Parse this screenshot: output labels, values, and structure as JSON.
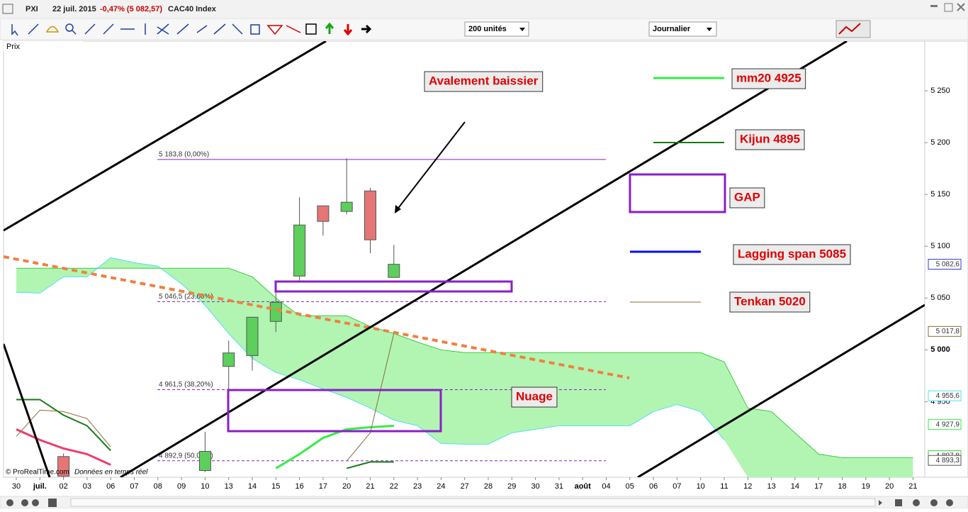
{
  "header": {
    "symbol": "PXI",
    "date": "22 juil. 2015",
    "change": "-0,47% (5 082,57)",
    "name": "CAC40 Index",
    "units": "200 unités",
    "period": "Journalier",
    "panel": "Prix",
    "credit": "© ProRealTime.com",
    "feed": "Données en temps réel"
  },
  "chart_data": {
    "type": "candlestick",
    "categories": [
      "30",
      "juil.",
      "02",
      "03",
      "06",
      "07",
      "08",
      "09",
      "10",
      "13",
      "14",
      "15",
      "16",
      "17",
      "20",
      "21",
      "22",
      "23",
      "24",
      "27",
      "28",
      "29",
      "30",
      "31",
      "août",
      "04",
      "05",
      "06",
      "07",
      "10",
      "11",
      "12",
      "13",
      "14",
      "17",
      "18",
      "19",
      "20",
      "21"
    ],
    "open": [
      null,
      null,
      4897,
      null,
      null,
      null,
      null,
      null,
      4883.5,
      4984,
      4994.5,
      5027.4,
      5071.2,
      5139,
      5133.6,
      5153.4,
      5069.9,
      null,
      null,
      null,
      null,
      null,
      null,
      null,
      null,
      null,
      null,
      null,
      null,
      null,
      null,
      null,
      null,
      null,
      null,
      null,
      null,
      null,
      null
    ],
    "high": [
      null,
      null,
      4900,
      null,
      null,
      null,
      null,
      null,
      4921,
      5009,
      5031.5,
      5055.5,
      5147.3,
      5139,
      5185,
      5156.2,
      5101.4,
      null,
      null,
      null,
      null,
      null,
      null,
      null,
      null,
      null,
      null,
      null,
      null,
      null,
      null,
      null,
      null,
      null,
      null,
      null,
      null,
      null,
      null
    ],
    "low": [
      null,
      null,
      4877,
      null,
      null,
      null,
      null,
      null,
      4882,
      4961,
      4980,
      5017.1,
      5067.1,
      5110.3,
      5130.8,
      5093.2,
      5069.9,
      null,
      null,
      null,
      null,
      null,
      null,
      null,
      null,
      null,
      null,
      null,
      null,
      null,
      null,
      null,
      null,
      null,
      null,
      null,
      null,
      null,
      null
    ],
    "close": [
      null,
      null,
      4878,
      null,
      null,
      null,
      null,
      null,
      4902,
      4997,
      5031.5,
      5045.9,
      5120.5,
      5124,
      5142.5,
      5106.2,
      5082.6,
      null,
      null,
      null,
      null,
      null,
      null,
      null,
      null,
      null,
      null,
      null,
      null,
      null,
      null,
      null,
      null,
      null,
      null,
      null,
      null,
      null,
      null
    ],
    "up_color": "#5ccf5c",
    "down_color": "#e57676",
    "ylim": [
      4877,
      5298
    ],
    "yticks": [
      {
        "value": 4950,
        "label": "4 950"
      },
      {
        "value": 5000,
        "label": "5 000"
      },
      {
        "value": 5050,
        "label": "5 050"
      },
      {
        "value": 5100,
        "label": "5 100"
      },
      {
        "value": 5150,
        "label": "5 150"
      },
      {
        "value": 5200,
        "label": "5 200"
      },
      {
        "value": 5250,
        "label": "5 250"
      }
    ],
    "series": [
      {
        "name": "mm20 4925",
        "color": "#33ee44",
        "values": [
          null,
          null,
          null,
          null,
          null,
          null,
          null,
          null,
          null,
          null,
          null,
          4885.6,
          4899.3,
          4915,
          4923.3,
          4925.3,
          4926.7,
          null,
          null,
          null,
          null,
          null,
          null,
          null,
          null,
          null,
          null,
          null,
          null,
          null,
          null,
          null,
          null,
          null,
          null,
          null,
          null,
          null,
          null
        ]
      },
      {
        "name": "Kijun 4895",
        "color": "#157a15",
        "values": [
          4952,
          4952,
          4937,
          4926.7,
          4902.7,
          null,
          null,
          null,
          null,
          null,
          null,
          null,
          null,
          null,
          4885.6,
          4891.8,
          4891.8,
          null,
          null,
          null,
          null,
          null,
          null,
          null,
          null,
          null,
          null,
          null,
          null,
          null,
          null,
          null,
          null,
          null,
          null,
          null,
          null,
          null,
          null
        ]
      },
      {
        "name": "Lagging span 5085",
        "color": "#0a0aff",
        "values": [
          null,
          null,
          null,
          null,
          null,
          null,
          null,
          null,
          null,
          null,
          null,
          null,
          null,
          null,
          null,
          null,
          null,
          null,
          null,
          null,
          null,
          null,
          null,
          null,
          null,
          null,
          null,
          null,
          null,
          null,
          null,
          null,
          null,
          null,
          null,
          null,
          null,
          null,
          null
        ]
      },
      {
        "name": "Tenkan 5020",
        "color": "#8a6a36",
        "values": [
          4916.4,
          4941.8,
          4940.4,
          4933.6,
          4906.2,
          null,
          null,
          null,
          null,
          null,
          null,
          null,
          null,
          null,
          4892.5,
          4919.9,
          5015.8,
          null,
          null,
          null,
          null,
          null,
          null,
          null,
          null,
          null,
          null,
          null,
          null,
          null,
          null,
          null,
          null,
          null,
          null,
          null,
          null,
          null,
          null
        ]
      },
      {
        "color": "#ee3d6e",
        "values": [
          4923.3,
          4913,
          4904.8,
          4899.3,
          4889,
          null,
          null,
          null,
          null,
          null,
          null,
          null,
          null,
          null,
          null,
          null,
          null,
          null,
          null,
          null,
          null,
          null,
          null,
          null,
          null,
          null,
          null,
          null,
          null,
          null,
          null,
          null,
          null,
          null,
          null,
          null,
          null,
          null,
          null
        ]
      }
    ],
    "cloud": {
      "name": "Nuage",
      "color": "#b2f5b2",
      "span_a_color": "#4ee0f0",
      "span_b_color": "#3ccc3c",
      "span_a": [
        5055.5,
        5054.8,
        5070.5,
        5070.5,
        5089,
        5084.2,
        5080.8,
        5063.7,
        5043.2,
        5015.8,
        4991.8,
        4978.1,
        4971.2,
        4962.3,
        4954.1,
        4943.8,
        4932.2,
        4926.7,
        4909.6,
        4908.9,
        4908.9,
        4919.9,
        4923.3,
        4926.7,
        4926.7,
        4926.7,
        4926.7,
        4940.4,
        4947.3,
        4940.4,
        4913,
        null,
        null,
        null,
        null,
        null,
        null,
        null,
        null
      ],
      "span_b": [
        5078.8,
        5078.8,
        5078.8,
        5078.8,
        5078.8,
        5078.8,
        5078.8,
        5078.8,
        5078.8,
        5078.8,
        5070.5,
        5050,
        5032.9,
        5032.9,
        5032.9,
        5022.6,
        5015.8,
        5007.5,
        5000,
        4997.3,
        4997.3,
        4997.3,
        4997.3,
        4997.3,
        4997.3,
        4997.3,
        4997.3,
        4997.3,
        4997.3,
        4997.3,
        4988.4,
        4943.8,
        4940.4,
        4919.9,
        4899.3,
        4895.9,
        4895.9,
        4895.9,
        4895.9
      ]
    },
    "fibonacci": [
      {
        "value": 5183.8,
        "label": "5 183,8 (0,00%)"
      },
      {
        "value": 5046.5,
        "label": "5 046,5 (23,60%)"
      },
      {
        "value": 4961.5,
        "label": "4 961,5 (38,20%)"
      },
      {
        "value": 4892.9,
        "label": "4 892,9 (50,00%)"
      }
    ],
    "annotations": [
      "Avalement baissier",
      "GAP"
    ],
    "price_labels": [
      {
        "value": 5082.57,
        "label": "5 082,57",
        "color": "#f5d800"
      },
      {
        "value": 5082.6,
        "label": "5 082,6",
        "color": "#2a3ad8"
      },
      {
        "value": 5017.8,
        "label": "5 017,8",
        "color": "#8a6a36"
      },
      {
        "value": 4955.6,
        "label": "4 955,6",
        "color": "#4ee0f0"
      },
      {
        "value": 4927.9,
        "label": "4 927,9",
        "color": "#33ee44"
      },
      {
        "value": 4897.8,
        "label": "4 897,8",
        "color": "#3ccc3c"
      },
      {
        "value": 4893.3,
        "label": "4 893,3",
        "color": "#555555"
      }
    ]
  }
}
